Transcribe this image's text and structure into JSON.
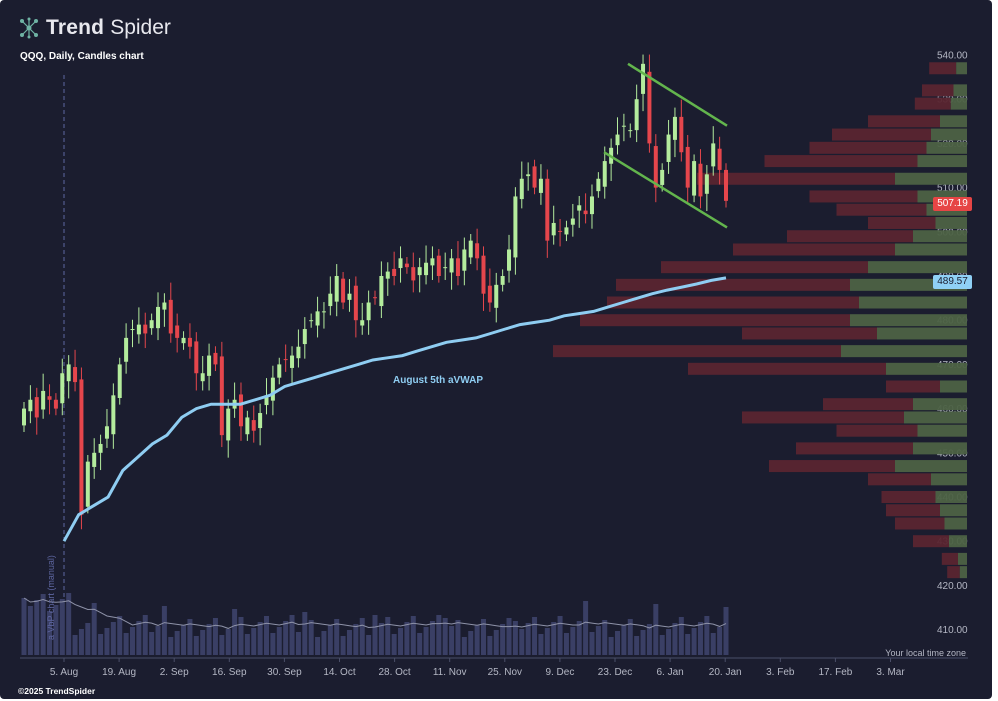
{
  "header": {
    "logo_bold": "Trend",
    "logo_light": "Spider",
    "subtitle": "QQQ, Daily, Candles chart"
  },
  "footer": {
    "copyright": "©2025 TrendSpider",
    "timezone": "Your local time zone"
  },
  "annotations": {
    "vwap_label": "August 5th aVWAP",
    "vertical_marker_label": "a VbP chart (manual)"
  },
  "price_tags": {
    "last_price": "507.19",
    "vwap_price": "489.57"
  },
  "colors": {
    "background": "#1b1d2f",
    "up_candle": "#b4ec9d",
    "down_candle": "#e5464c",
    "vwap_line": "#8fcdf2",
    "channel": "#63b54d",
    "volume_bar": "#3a3f65",
    "vbp_up": "#4d6244",
    "vbp_down": "#5a2530"
  },
  "chart_data": {
    "type": "candlestick",
    "symbol": "QQQ",
    "interval": "Daily",
    "y_axis": {
      "ticks": [
        540,
        530,
        520,
        510,
        500,
        490,
        480,
        470,
        460,
        450,
        440,
        430,
        420,
        410
      ],
      "range": [
        405,
        543
      ]
    },
    "x_axis": {
      "ticks": [
        "5. Aug",
        "19. Aug",
        "2. Sep",
        "16. Sep",
        "30. Sep",
        "14. Oct",
        "28. Oct",
        "11. Nov",
        "25. Nov",
        "9. Dec",
        "23. Dec",
        "6. Jan",
        "20. Jan",
        "3. Feb",
        "17. Feb",
        "3. Mar"
      ]
    },
    "close_path": [
      460,
      462,
      458,
      464,
      462,
      460,
      468,
      470,
      466,
      436,
      448,
      450,
      452,
      456,
      463,
      470,
      476,
      478,
      479,
      477,
      480,
      483,
      484,
      477,
      476,
      476,
      474,
      468,
      468,
      472,
      470,
      454,
      460,
      462,
      456,
      458,
      455,
      459,
      463,
      467,
      470,
      471,
      472,
      474,
      478,
      480,
      482,
      482,
      486,
      490,
      484,
      486,
      480,
      480,
      484,
      485,
      490,
      491,
      490,
      494,
      492,
      489,
      492,
      493,
      494,
      490,
      492,
      494,
      490,
      496,
      498,
      494,
      486,
      484,
      488,
      490,
      496,
      508,
      512,
      513,
      510,
      512,
      498,
      502,
      500,
      501,
      503,
      506,
      504,
      508,
      512,
      516,
      519,
      522,
      524,
      523,
      530,
      538,
      520,
      510,
      514,
      522,
      526,
      518,
      510,
      516,
      508,
      513,
      520,
      514,
      507
    ],
    "vwap": [
      430,
      436,
      438,
      440,
      446,
      449,
      452,
      454,
      458,
      460,
      461,
      461,
      461,
      462,
      463,
      465,
      466,
      467,
      468,
      469,
      470,
      471,
      471.5,
      472,
      473,
      474,
      475,
      475.5,
      476,
      477,
      478,
      479,
      479.5,
      480,
      481,
      481.5,
      482,
      483,
      484,
      485,
      486,
      486.8,
      487.5,
      488.2,
      489,
      489.57
    ],
    "vwap_label": "August 5th aVWAP",
    "last_price": 507.19,
    "vwap_last": 489.57,
    "channel": {
      "upper": [
        {
          "date": "~17. Dec",
          "price": 538
        },
        {
          "date": "~7. Jan",
          "price": 524
        }
      ],
      "lower": [
        {
          "date": "~12. Dec",
          "price": 518
        },
        {
          "date": "~7. Jan",
          "price": 501
        }
      ]
    },
    "volume_profile": [
      {
        "price": 537,
        "up": 12,
        "down": 30
      },
      {
        "price": 532,
        "up": 15,
        "down": 35
      },
      {
        "price": 529,
        "up": 18,
        "down": 40
      },
      {
        "price": 525,
        "up": 30,
        "down": 80
      },
      {
        "price": 522,
        "up": 40,
        "down": 110
      },
      {
        "price": 519,
        "up": 45,
        "down": 130
      },
      {
        "price": 516,
        "up": 55,
        "down": 170
      },
      {
        "price": 512,
        "up": 80,
        "down": 220
      },
      {
        "price": 508,
        "up": 55,
        "down": 120
      },
      {
        "price": 505,
        "up": 45,
        "down": 100
      },
      {
        "price": 502,
        "up": 35,
        "down": 75
      },
      {
        "price": 499,
        "up": 60,
        "down": 140
      },
      {
        "price": 496,
        "up": 80,
        "down": 180
      },
      {
        "price": 492,
        "up": 110,
        "down": 230
      },
      {
        "price": 488,
        "up": 130,
        "down": 260
      },
      {
        "price": 484,
        "up": 120,
        "down": 280
      },
      {
        "price": 480,
        "up": 130,
        "down": 300
      },
      {
        "price": 477,
        "up": 100,
        "down": 150
      },
      {
        "price": 473,
        "up": 140,
        "down": 320
      },
      {
        "price": 469,
        "up": 90,
        "down": 220
      },
      {
        "price": 465,
        "up": 30,
        "down": 60
      },
      {
        "price": 461,
        "up": 60,
        "down": 100
      },
      {
        "price": 458,
        "up": 70,
        "down": 180
      },
      {
        "price": 455,
        "up": 55,
        "down": 90
      },
      {
        "price": 451,
        "up": 60,
        "down": 130
      },
      {
        "price": 447,
        "up": 80,
        "down": 140
      },
      {
        "price": 444,
        "up": 40,
        "down": 70
      },
      {
        "price": 440,
        "up": 35,
        "down": 60
      },
      {
        "price": 437,
        "up": 30,
        "down": 60
      },
      {
        "price": 434,
        "up": 25,
        "down": 55
      },
      {
        "price": 430,
        "up": 20,
        "down": 40
      },
      {
        "price": 426,
        "up": 10,
        "down": 18
      },
      {
        "price": 423,
        "up": 8,
        "down": 14
      }
    ]
  }
}
